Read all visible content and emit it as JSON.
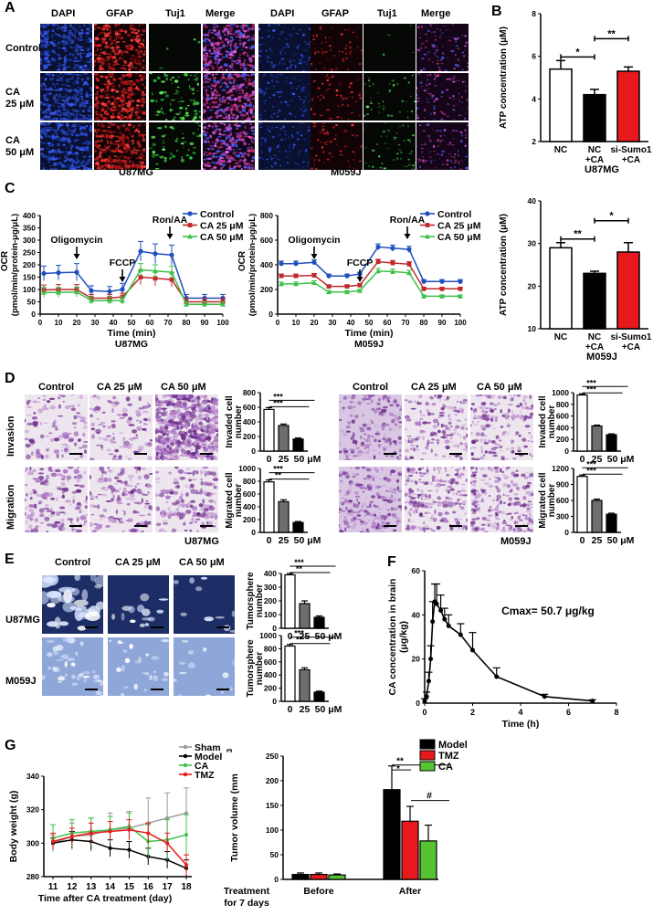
{
  "panel_labels": {
    "A": "A",
    "B": "B",
    "C": "C",
    "D": "D",
    "E": "E",
    "F": "F",
    "G": "G"
  },
  "panelA": {
    "headers": [
      "DAPI",
      "GFAP",
      "Tuj1",
      "Merge",
      "DAPI",
      "GFAP",
      "Tuj1",
      "Merge"
    ],
    "rows": [
      "Control",
      "CA\n25 μM",
      "CA\n50 μM"
    ],
    "captions": [
      "U87MG",
      "M059J"
    ]
  },
  "panelD": {
    "headers": [
      "Control",
      "CA 25 μM",
      "CA 50 μM",
      "Control",
      "CA 25 μM",
      "CA 50 μM"
    ],
    "rows": [
      "Invasion",
      "Migration"
    ],
    "captions": [
      "U87MG",
      "M059J"
    ]
  },
  "panelE": {
    "headers": [
      "Control",
      "CA 25 μM",
      "CA 50 μM"
    ],
    "rows": [
      "U87MG",
      "M059J"
    ]
  },
  "colors": {
    "control": "#1f4fbf",
    "ca25": "#c0282a",
    "ca50": "#3cc24a",
    "red_bar": "#e8191c",
    "black": "#000000",
    "grey": "#6e6e6e",
    "sham": "#9a9a9a",
    "green_bar": "#58c332"
  },
  "chart_data": [
    {
      "id": "B1",
      "type": "bar",
      "title": "",
      "ylabel": "ATP concentration (μM)",
      "ylim": [
        2,
        8
      ],
      "yticks": [
        2,
        4,
        6,
        8
      ],
      "categories": [
        "NC",
        "NC +CA",
        "si-Sumo1 +CA"
      ],
      "values": [
        5.4,
        4.2,
        5.3
      ],
      "errors": [
        0.4,
        0.25,
        0.2
      ],
      "sig": [
        {
          "from": 0,
          "to": 1,
          "label": "*"
        },
        {
          "from": 1,
          "to": 2,
          "label": "**"
        }
      ],
      "caption": "U87MG"
    },
    {
      "id": "B2",
      "type": "bar",
      "title": "",
      "ylabel": "ATP concentration (μM)",
      "ylim": [
        10,
        40
      ],
      "yticks": [
        10,
        20,
        30,
        40
      ],
      "categories": [
        "NC",
        "NC +CA",
        "si-Sumo1 +CA"
      ],
      "values": [
        29,
        23,
        28
      ],
      "errors": [
        1.2,
        0.5,
        2.2
      ],
      "sig": [
        {
          "from": 0,
          "to": 1,
          "label": "**"
        },
        {
          "from": 1,
          "to": 2,
          "label": "*"
        }
      ],
      "caption": "M059J"
    },
    {
      "id": "C1",
      "type": "line",
      "xlabel": "Time (min)",
      "ylabel": "OCR (pmol/min/protein-μg/μL)",
      "xlim": [
        0,
        100
      ],
      "ylim": [
        0,
        400
      ],
      "xticks": [
        0,
        10,
        20,
        30,
        40,
        50,
        60,
        70,
        80,
        90,
        100
      ],
      "yticks": [
        0,
        50,
        100,
        150,
        200,
        250,
        300,
        350,
        400
      ],
      "annotations": [
        "Oligomycin",
        "FCCP",
        "Ron/AA"
      ],
      "annotation_x": [
        20,
        45,
        71
      ],
      "x": [
        2,
        10,
        20,
        28,
        38,
        45,
        55,
        63,
        72,
        80,
        90,
        100
      ],
      "series": [
        {
          "name": "Control",
          "values": [
            165,
            168,
            170,
            95,
            92,
            100,
            255,
            245,
            240,
            65,
            65,
            65
          ],
          "err": [
            30,
            30,
            35,
            20,
            20,
            25,
            40,
            40,
            40,
            15,
            15,
            15
          ]
        },
        {
          "name": "CA 25 μM",
          "values": [
            98,
            100,
            100,
            65,
            65,
            70,
            150,
            145,
            140,
            50,
            50,
            50
          ],
          "err": [
            20,
            20,
            20,
            15,
            15,
            15,
            30,
            30,
            30,
            15,
            15,
            15
          ]
        },
        {
          "name": "CA 50 μM",
          "values": [
            88,
            88,
            90,
            55,
            55,
            55,
            180,
            175,
            170,
            40,
            40,
            40
          ],
          "err": [
            20,
            20,
            20,
            15,
            15,
            15,
            25,
            25,
            25,
            10,
            10,
            10
          ]
        }
      ],
      "caption": "U87MG"
    },
    {
      "id": "C2",
      "type": "line",
      "xlabel": "Time (min)",
      "ylabel": "OCR (pmol/min/protein-μg/μL)",
      "xlim": [
        0,
        100
      ],
      "ylim": [
        0,
        800
      ],
      "xticks": [
        0,
        10,
        20,
        30,
        40,
        50,
        60,
        70,
        80,
        90,
        100
      ],
      "yticks": [
        0,
        200,
        400,
        600,
        800
      ],
      "annotations": [
        "Oligomycin",
        "FCCP",
        "Ron/AA"
      ],
      "annotation_x": [
        20,
        45,
        71
      ],
      "x": [
        2,
        10,
        20,
        28,
        38,
        45,
        55,
        63,
        72,
        80,
        90,
        100
      ],
      "series": [
        {
          "name": "Control",
          "values": [
            410,
            410,
            420,
            310,
            310,
            325,
            545,
            535,
            525,
            265,
            265,
            265
          ],
          "err": [
            20,
            20,
            20,
            15,
            15,
            15,
            25,
            25,
            25,
            15,
            15,
            15
          ]
        },
        {
          "name": "CA 25 μM",
          "values": [
            310,
            310,
            315,
            225,
            225,
            235,
            425,
            415,
            405,
            205,
            205,
            205
          ],
          "err": [
            15,
            15,
            15,
            12,
            12,
            12,
            20,
            20,
            20,
            10,
            10,
            10
          ]
        },
        {
          "name": "CA 50 μM",
          "values": [
            245,
            245,
            255,
            180,
            180,
            190,
            350,
            345,
            335,
            145,
            145,
            145
          ],
          "err": [
            15,
            15,
            15,
            10,
            10,
            10,
            20,
            20,
            20,
            10,
            10,
            10
          ]
        }
      ],
      "caption": "M059J"
    },
    {
      "id": "D1",
      "type": "bar",
      "ylabel": "Invaded cell number",
      "ylim": [
        0,
        800
      ],
      "yticks": [
        0,
        200,
        400,
        600,
        800
      ],
      "categories": [
        "0",
        "25",
        "50 μM"
      ],
      "values": [
        570,
        350,
        165
      ],
      "errors": [
        25,
        20,
        15
      ],
      "colors": [
        "#ffffff",
        "#6e6e6e",
        "#000000"
      ],
      "sig": [
        "***",
        "***"
      ]
    },
    {
      "id": "D2",
      "type": "bar",
      "ylabel": "Migrated cell number",
      "ylim": [
        0,
        1000
      ],
      "yticks": [
        0,
        200,
        400,
        600,
        800,
        1000
      ],
      "categories": [
        "0",
        "25",
        "50 μM"
      ],
      "values": [
        790,
        480,
        155
      ],
      "errors": [
        30,
        30,
        15
      ],
      "colors": [
        "#ffffff",
        "#6e6e6e",
        "#000000"
      ],
      "sig": [
        "***",
        "**"
      ]
    },
    {
      "id": "D3",
      "type": "bar",
      "ylabel": "Invaded cell number",
      "ylim": [
        0,
        1000
      ],
      "yticks": [
        0,
        200,
        400,
        600,
        800,
        1000
      ],
      "categories": [
        "0",
        "25",
        "50 μM"
      ],
      "values": [
        960,
        430,
        280
      ],
      "errors": [
        20,
        15,
        15
      ],
      "colors": [
        "#ffffff",
        "#6e6e6e",
        "#000000"
      ],
      "sig": [
        "***",
        "***"
      ]
    },
    {
      "id": "D4",
      "type": "bar",
      "ylabel": "Migrated cell number",
      "ylim": [
        0,
        1200
      ],
      "yticks": [
        0,
        300,
        600,
        900,
        1200
      ],
      "categories": [
        "0",
        "25",
        "50 μM"
      ],
      "values": [
        1050,
        600,
        340
      ],
      "errors": [
        25,
        25,
        20
      ],
      "colors": [
        "#ffffff",
        "#6e6e6e",
        "#000000"
      ],
      "sig": [
        "***",
        "***"
      ]
    },
    {
      "id": "E1",
      "type": "bar",
      "ylabel": "Tumorsphere number",
      "ylim": [
        0,
        400
      ],
      "yticks": [
        0,
        100,
        200,
        300,
        400
      ],
      "categories": [
        "0",
        "25",
        "50 μM"
      ],
      "values": [
        390,
        180,
        80
      ],
      "errors": [
        10,
        20,
        10
      ],
      "colors": [
        "#ffffff",
        "#6e6e6e",
        "#000000"
      ],
      "sig": [
        "***",
        "**"
      ]
    },
    {
      "id": "E2",
      "type": "bar",
      "ylabel": "Tumorsphere number",
      "ylim": [
        0,
        1000
      ],
      "yticks": [
        0,
        200,
        400,
        600,
        800,
        1000
      ],
      "categories": [
        "0",
        "25",
        "50 μM"
      ],
      "values": [
        840,
        480,
        140
      ],
      "errors": [
        25,
        30,
        15
      ],
      "colors": [
        "#ffffff",
        "#6e6e6e",
        "#000000"
      ],
      "sig": [
        "***",
        "**"
      ]
    },
    {
      "id": "F",
      "type": "line",
      "xlabel": "Time (h)",
      "ylabel": "CA concentration in brain (μg/kg)",
      "xlim": [
        0,
        8
      ],
      "ylim": [
        0,
        60
      ],
      "xticks": [
        0,
        2,
        4,
        6,
        8
      ],
      "yticks": [
        0,
        20,
        40,
        60
      ],
      "annotation": "Cmax= 50.7 μg/kg",
      "x": [
        0,
        0.08,
        0.17,
        0.25,
        0.33,
        0.42,
        0.5,
        0.67,
        0.83,
        1,
        1.5,
        2,
        3,
        5,
        7
      ],
      "values": [
        1,
        3,
        10,
        20,
        37,
        46,
        45,
        42,
        38,
        35,
        31,
        24,
        12,
        3,
        1
      ],
      "err": [
        1,
        2,
        4,
        6,
        9,
        8,
        9,
        7,
        5,
        5,
        5,
        8,
        4,
        1,
        0.5
      ]
    },
    {
      "id": "G1",
      "type": "line",
      "xlabel": "Time after CA treatment (day)",
      "ylabel": "Body weight (g)",
      "ylim": [
        280,
        340
      ],
      "yticks": [
        280,
        300,
        320,
        340
      ],
      "categories": [
        "11",
        "12",
        "13",
        "14",
        "15",
        "16",
        "17",
        "18"
      ],
      "series": [
        {
          "name": "Sham",
          "values": [
            300,
            304,
            305,
            308,
            309,
            312,
            315,
            318
          ],
          "err": [
            5,
            8,
            10,
            10,
            10,
            15,
            15,
            15
          ],
          "color": "#9a9a9a"
        },
        {
          "name": "Model",
          "values": [
            300,
            302,
            301,
            297,
            296,
            292,
            290,
            285
          ],
          "err": [
            3,
            5,
            5,
            5,
            5,
            5,
            5,
            5
          ],
          "color": "#000000"
        },
        {
          "name": "CA",
          "values": [
            303,
            306,
            307,
            308,
            310,
            301,
            302,
            305
          ],
          "err": [
            8,
            8,
            8,
            8,
            8,
            10,
            12,
            12
          ],
          "color": "#3cc24a"
        },
        {
          "name": "TMZ",
          "values": [
            301,
            304,
            306,
            307,
            308,
            306,
            300,
            287
          ],
          "err": [
            5,
            5,
            6,
            6,
            6,
            6,
            6,
            6
          ],
          "color": "#e8191c"
        }
      ]
    },
    {
      "id": "G2",
      "type": "bar",
      "ylabel": "Tumor volume (mm³)",
      "ylim": [
        0,
        250
      ],
      "yticks": [
        0,
        50,
        100,
        150,
        200,
        250
      ],
      "categories": [
        "Before",
        "After"
      ],
      "groups_label": "Treatment for 7 days",
      "series": [
        {
          "name": "Model",
          "values": [
            10,
            182
          ],
          "err": [
            3,
            48
          ],
          "color": "#000000"
        },
        {
          "name": "TMZ",
          "values": [
            10,
            118
          ],
          "err": [
            3,
            30
          ],
          "color": "#e8191c"
        },
        {
          "name": "CA",
          "values": [
            9,
            78
          ],
          "err": [
            2,
            32
          ],
          "color": "#58c332"
        }
      ],
      "sig": [
        "**",
        "*",
        "#"
      ]
    }
  ]
}
